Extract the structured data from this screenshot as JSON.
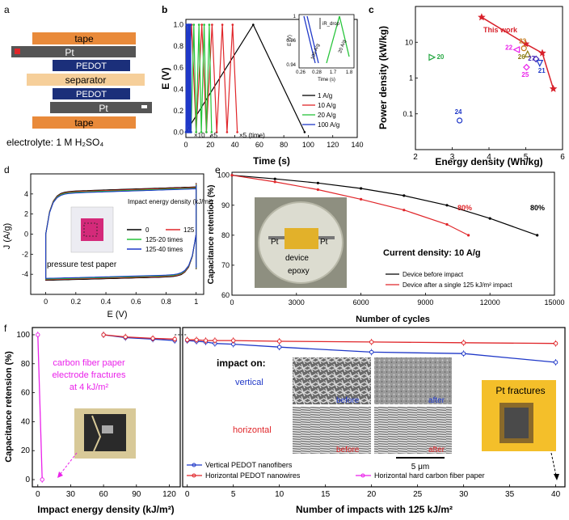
{
  "colors": {
    "tape": "#e98a3a",
    "pt_gray": "#555555",
    "pedot": "#1b2f7a",
    "separator": "#f6cf9a",
    "black": "#000000",
    "red": "#e0262a",
    "green": "#27c43a",
    "blue": "#1f38c8",
    "magenta": "#ea22ea",
    "dkred": "#d8202a"
  },
  "panel_a": {
    "label": "a",
    "layers": [
      "tape",
      "Pt",
      "PEDOT",
      "separator",
      "PEDOT",
      "Pt",
      "tape"
    ],
    "electrolyte": "electrolyte: 1 M H₂SO₄"
  },
  "chart_data": [
    {
      "panel": "b",
      "type": "line",
      "xlabel": "Time (s)",
      "ylabel": "E (V)",
      "xlim": [
        0,
        140
      ],
      "ylim": [
        -0.05,
        1.05
      ],
      "xticks": [
        0,
        20,
        40,
        60,
        80,
        100,
        120,
        140
      ],
      "yticks": [
        0.0,
        0.2,
        0.4,
        0.6,
        0.8,
        1.0
      ],
      "series": [
        {
          "name": "1 A/g",
          "color": "#000000",
          "points": [
            [
              0,
              0
            ],
            [
              55,
              1
            ],
            [
              97,
              0
            ]
          ]
        },
        {
          "name": "10 A/g",
          "color": "#e0262a",
          "points": [
            [
              0,
              0
            ],
            [
              4.6,
              1
            ],
            [
              8.4,
              0
            ],
            [
              13,
              1
            ],
            [
              16.8,
              0
            ],
            [
              21.4,
              1
            ],
            [
              25.2,
              0
            ],
            [
              29.8,
              1
            ],
            [
              33.6,
              0
            ],
            [
              38.2,
              1
            ],
            [
              42,
              0
            ]
          ]
        },
        {
          "name": "20 A/g",
          "color": "#27c43a",
          "points": [
            [
              0,
              0
            ],
            [
              2.3,
              1
            ],
            [
              4.2,
              0
            ],
            [
              6.5,
              1
            ],
            [
              8.4,
              0
            ],
            [
              10.7,
              1
            ],
            [
              12.6,
              0
            ],
            [
              14.9,
              1
            ],
            [
              16.8,
              0
            ],
            [
              19.1,
              1
            ],
            [
              21,
              0
            ]
          ]
        },
        {
          "name": "100 A/g",
          "color": "#1f38c8",
          "points": [
            [
              0,
              0
            ],
            [
              0.45,
              1
            ],
            [
              0.85,
              0
            ],
            [
              1.3,
              1
            ],
            [
              1.7,
              0
            ],
            [
              2.15,
              1
            ],
            [
              2.55,
              0
            ],
            [
              3.0,
              1
            ],
            [
              3.4,
              0
            ],
            [
              3.85,
              1
            ],
            [
              4.25,
              0
            ]
          ]
        }
      ],
      "annotations": [
        "×10",
        "×5",
        "×5 (time)"
      ],
      "inset": {
        "xlabel": "Time (s)",
        "ylabel": "E (V)",
        "xlim": [
          0.26,
          1.85
        ],
        "ylim": [
          0.94,
          1.0
        ],
        "xticks": [
          0.26,
          0.28,
          1.7,
          1.8
        ],
        "yticks": [
          0.94,
          0.96,
          1.0
        ],
        "labels": [
          "100 A/g",
          "20 A/g",
          "iR_drop"
        ]
      }
    },
    {
      "panel": "c",
      "type": "scatter",
      "xlabel": "Energy density (Wh/kg)",
      "ylabel": "Power density (kW/kg)",
      "xlim": [
        2,
        6
      ],
      "ylim": [
        0.01,
        100
      ],
      "yscale": "log",
      "xticks": [
        2,
        3,
        4,
        5,
        6
      ],
      "yticks": [
        0.1,
        1,
        10
      ],
      "this_work": {
        "name": "This work",
        "color": "#d8202a",
        "points": [
          [
            3.8,
            50
          ],
          [
            5.0,
            9
          ],
          [
            5.45,
            5
          ],
          [
            5.75,
            0.5
          ]
        ]
      },
      "refs": [
        {
          "name": "20",
          "x": 2.45,
          "y": 3.8,
          "color": "#27a844",
          "marker": "tri-right"
        },
        {
          "name": "22",
          "x": 4.75,
          "y": 6.2,
          "color": "#ea22ea",
          "marker": "tri-left"
        },
        {
          "name": "23",
          "x": 4.95,
          "y": 6.8,
          "color": "#c47a1a",
          "marker": "circle"
        },
        {
          "name": "26",
          "x": 5.05,
          "y": 4.7,
          "color": "#8a7a10",
          "marker": "tri-up"
        },
        {
          "name": "27",
          "x": 5.28,
          "y": 3.4,
          "color": "#4a2ab8",
          "marker": "diamond"
        },
        {
          "name": "21",
          "x": 5.38,
          "y": 2.6,
          "color": "#1f38c8",
          "marker": "tri-down"
        },
        {
          "name": "25",
          "x": 5.02,
          "y": 2.0,
          "color": "#ea22ea",
          "marker": "diamond"
        },
        {
          "name": "24",
          "x": 3.2,
          "y": 0.065,
          "color": "#1f38c8",
          "marker": "circle"
        }
      ]
    },
    {
      "panel": "d",
      "type": "line",
      "xlabel": "E (V)",
      "ylabel": "J (A/g)",
      "xlim": [
        -0.1,
        1.05
      ],
      "ylim": [
        -6,
        6
      ],
      "xticks": [
        0.0,
        0.2,
        0.4,
        0.6,
        0.8,
        1.0
      ],
      "yticks": [
        -4,
        -2,
        0,
        2,
        4
      ],
      "legend_title": "Impact energy density (kJ/m²)",
      "series": [
        {
          "name": "0",
          "color": "#000000"
        },
        {
          "name": "125",
          "color": "#e0262a"
        },
        {
          "name": "125-20 times",
          "color": "#27c43a"
        },
        {
          "name": "125-40 times",
          "color": "#1f38c8"
        }
      ],
      "annotations": [
        "pressure test paper"
      ]
    },
    {
      "panel": "e",
      "type": "line",
      "xlabel": "Number of cycles",
      "ylabel": "Capacitance retention (%)",
      "xlim": [
        0,
        15000
      ],
      "ylim": [
        60,
        101
      ],
      "xticks": [
        0,
        3000,
        6000,
        9000,
        12000,
        15000
      ],
      "series": [
        {
          "name": "Device before impact",
          "color": "#000000",
          "x": [
            0,
            2000,
            4000,
            6000,
            8000,
            10000,
            12000,
            14200
          ],
          "y": [
            100,
            98.8,
            97.4,
            95.6,
            93.2,
            90,
            85.6,
            80
          ]
        },
        {
          "name": "Device after a single 125 kJ/m² impact",
          "color": "#e0262a",
          "x": [
            0,
            2000,
            4000,
            6000,
            8000,
            10000,
            11000
          ],
          "y": [
            100,
            97.8,
            95.2,
            92,
            88.4,
            83.6,
            80
          ]
        }
      ],
      "annotations": [
        "80%",
        "80%",
        "Current density: 10 A/g",
        "Pt",
        "Pt",
        "device",
        "epoxy"
      ]
    },
    {
      "panel": "f-left",
      "type": "line",
      "xlabel": "Impact energy density (kJ/m²)",
      "ylabel": "Capacitance retension (%)",
      "xlim": [
        -5,
        130
      ],
      "ylim": [
        -5,
        105
      ],
      "xticks": [
        0,
        30,
        60,
        90,
        120
      ],
      "yticks": [
        0,
        20,
        40,
        60,
        80,
        100
      ],
      "series": [
        {
          "name": "Vertical PEDOT nanofibers",
          "color": "#1f38c8",
          "x": [
            60,
            80,
            105,
            125
          ],
          "y": [
            100,
            98,
            97,
            96
          ]
        },
        {
          "name": "Horizontal PEDOT nanowires",
          "color": "#e0262a",
          "x": [
            60,
            80,
            105,
            125
          ],
          "y": [
            100,
            98.5,
            97.5,
            97
          ]
        },
        {
          "name": "Horizontal hard carbon fiber paper",
          "color": "#ea22ea",
          "x": [
            0,
            4
          ],
          "y": [
            100,
            0
          ]
        }
      ],
      "annotations": [
        "carbon fiber paper electrode fractures at 4 kJ/m²"
      ]
    },
    {
      "panel": "f-right",
      "type": "line",
      "xlabel": "Number of impacts with 125 kJ/m²",
      "xlim": [
        -0.5,
        41
      ],
      "ylim": [
        -5,
        105
      ],
      "xticks": [
        0,
        5,
        10,
        15,
        20,
        25,
        30,
        35,
        40
      ],
      "series": [
        {
          "name": "Vertical PEDOT nanofibers",
          "color": "#1f38c8",
          "x": [
            0,
            1,
            2,
            3,
            5,
            10,
            20,
            30,
            40
          ],
          "y": [
            96,
            95.5,
            95,
            94,
            93.5,
            91.5,
            88,
            87,
            81
          ]
        },
        {
          "name": "Horizontal PEDOT nanowires",
          "color": "#e0262a",
          "x": [
            0,
            1,
            2,
            3,
            5,
            10,
            20,
            30,
            40
          ],
          "y": [
            96.5,
            96.5,
            96,
            96,
            96,
            95.5,
            95,
            94.5,
            94
          ]
        }
      ],
      "annotations": [
        "impact on:",
        "vertical",
        "horizontal",
        "before",
        "after",
        "before",
        "after",
        "5 μm",
        "Pt fractures"
      ]
    }
  ]
}
